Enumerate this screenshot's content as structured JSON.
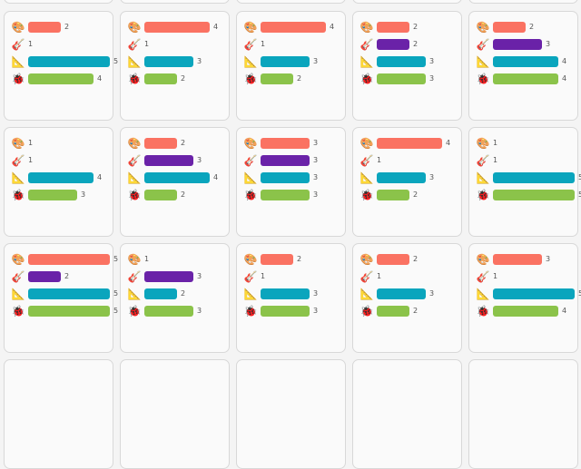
{
  "colors": {
    "palette": "#fa7262",
    "guitar": "#6a22a8",
    "ruler": "#0aa5bd",
    "ladybug": "#8bc34a"
  },
  "icons": {
    "palette": "🎨",
    "guitar": "🎸",
    "ruler": "📐",
    "ladybug": "🐞"
  },
  "max_value": 5,
  "cards": [
    {
      "palette": 2,
      "guitar": 1,
      "ruler": 5,
      "ladybug": 4
    },
    {
      "palette": 4,
      "guitar": 1,
      "ruler": 3,
      "ladybug": 2
    },
    {
      "palette": 4,
      "guitar": 1,
      "ruler": 3,
      "ladybug": 2
    },
    {
      "palette": 2,
      "guitar": 2,
      "ruler": 3,
      "ladybug": 3
    },
    {
      "palette": 2,
      "guitar": 3,
      "ruler": 4,
      "ladybug": 4
    },
    {
      "palette": 1,
      "guitar": 1,
      "ruler": 4,
      "ladybug": 3
    },
    {
      "palette": 2,
      "guitar": 3,
      "ruler": 4,
      "ladybug": 2
    },
    {
      "palette": 3,
      "guitar": 3,
      "ruler": 3,
      "ladybug": 3
    },
    {
      "palette": 4,
      "guitar": 1,
      "ruler": 3,
      "ladybug": 2
    },
    {
      "palette": 1,
      "guitar": 1,
      "ruler": 5,
      "ladybug": 5
    },
    {
      "palette": 5,
      "guitar": 2,
      "ruler": 5,
      "ladybug": 5
    },
    {
      "palette": 1,
      "guitar": 3,
      "ruler": 2,
      "ladybug": 3
    },
    {
      "palette": 2,
      "guitar": 1,
      "ruler": 3,
      "ladybug": 3
    },
    {
      "palette": 2,
      "guitar": 1,
      "ruler": 3,
      "ladybug": 2
    },
    {
      "palette": 3,
      "guitar": 1,
      "ruler": 5,
      "ladybug": 4
    }
  ]
}
